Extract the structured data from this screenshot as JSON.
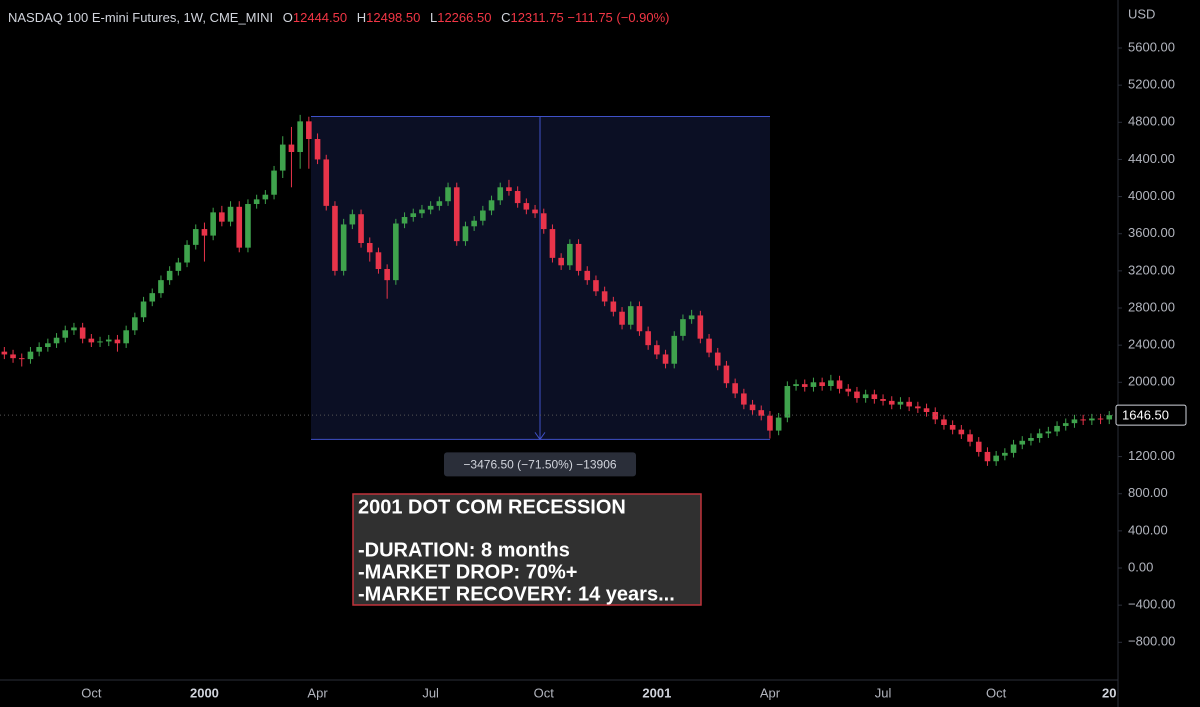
{
  "chart_data": {
    "type": "candlestick",
    "header": {
      "symbol": "NASDAQ 100 E-mini Futures, 1W, CME_MINI",
      "o_label": "O",
      "open": "12444.50",
      "h_label": "H",
      "high": "12498.50",
      "l_label": "L",
      "low": "12266.50",
      "c_label": "C",
      "close": "12311.75",
      "change": "−111.75 (−0.90%)"
    },
    "y_unit": "USD",
    "up_color": "#3fa34d",
    "down_color": "#e8344a",
    "ylim": [
      -1206,
      6117
    ],
    "yticks": [
      {
        "value": 5600,
        "label": "5600.00"
      },
      {
        "value": 5200,
        "label": "5200.00"
      },
      {
        "value": 4800,
        "label": "4800.00"
      },
      {
        "value": 4400,
        "label": "4400.00"
      },
      {
        "value": 4000,
        "label": "4000.00"
      },
      {
        "value": 3600,
        "label": "3600.00"
      },
      {
        "value": 3200,
        "label": "3200.00"
      },
      {
        "value": 2800,
        "label": "2800.00"
      },
      {
        "value": 2400,
        "label": "2400.00"
      },
      {
        "value": 2000,
        "label": "2000.00"
      },
      {
        "value": 1600,
        "label": "1600.00"
      },
      {
        "value": 1200,
        "label": "1200.00"
      },
      {
        "value": 800,
        "label": "800.00"
      },
      {
        "value": 400,
        "label": "400.00"
      },
      {
        "value": 0,
        "label": "0.00"
      },
      {
        "value": -400,
        "label": "−400.00"
      },
      {
        "value": -800,
        "label": "−800.00"
      }
    ],
    "last_price": {
      "value": 1646.5,
      "label": "1646.50"
    },
    "categories": [
      null,
      null,
      null,
      null,
      null,
      null,
      null,
      null,
      null,
      null,
      "Oct",
      null,
      null,
      null,
      null,
      null,
      null,
      null,
      null,
      null,
      null,
      null,
      null,
      "2000",
      null,
      null,
      null,
      null,
      null,
      null,
      null,
      null,
      null,
      null,
      null,
      null,
      "Apr",
      null,
      null,
      null,
      null,
      null,
      null,
      null,
      null,
      null,
      null,
      null,
      null,
      "Jul",
      null,
      null,
      null,
      null,
      null,
      null,
      null,
      null,
      null,
      null,
      null,
      null,
      "Oct",
      null,
      null,
      null,
      null,
      null,
      null,
      null,
      null,
      null,
      null,
      null,
      null,
      "2001",
      null,
      null,
      null,
      null,
      null,
      null,
      null,
      null,
      null,
      null,
      null,
      null,
      "Apr",
      null,
      null,
      null,
      null,
      null,
      null,
      null,
      null,
      null,
      null,
      null,
      null,
      "Jul",
      null,
      null,
      null,
      null,
      null,
      null,
      null,
      null,
      null,
      null,
      null,
      null,
      "Oct",
      null,
      null,
      null,
      null,
      null,
      null,
      null,
      null,
      null,
      null,
      null,
      null,
      "20"
    ],
    "open": [
      2330,
      2300,
      2260,
      2250,
      2330,
      2380,
      2420,
      2480,
      2560,
      2590,
      2470,
      2430,
      2440,
      2460,
      2420,
      2560,
      2700,
      2870,
      2960,
      3100,
      3200,
      3290,
      3480,
      3650,
      3580,
      3830,
      3730,
      3890,
      3450,
      3920,
      3970,
      4020,
      4280,
      4560,
      4480,
      4810,
      4620,
      4400,
      3900,
      3200,
      3700,
      3810,
      3500,
      3400,
      3220,
      3100,
      3710,
      3780,
      3820,
      3860,
      3900,
      3950,
      4100,
      3520,
      3680,
      3740,
      3850,
      3960,
      4100,
      4060,
      3930,
      3860,
      3820,
      3650,
      3340,
      3260,
      3490,
      3200,
      3100,
      2980,
      2870,
      2760,
      2620,
      2820,
      2550,
      2400,
      2300,
      2200,
      2500,
      2680,
      2720,
      2470,
      2320,
      2180,
      1990,
      1880,
      1760,
      1700,
      1640,
      1480,
      1620,
      1960,
      1980,
      1950,
      2000,
      1960,
      2020,
      1930,
      1900,
      1830,
      1870,
      1820,
      1800,
      1760,
      1790,
      1740,
      1720,
      1680,
      1600,
      1540,
      1490,
      1440,
      1360,
      1250,
      1150,
      1210,
      1240,
      1330,
      1370,
      1400,
      1450,
      1470,
      1530,
      1560,
      1600,
      1590,
      1610,
      1600
    ],
    "high": [
      2380,
      2350,
      2310,
      2380,
      2430,
      2470,
      2530,
      2610,
      2640,
      2640,
      2520,
      2490,
      2510,
      2510,
      2610,
      2750,
      2920,
      3010,
      3150,
      3250,
      3340,
      3530,
      3700,
      3720,
      3880,
      3900,
      3950,
      3950,
      3970,
      4020,
      4070,
      4330,
      4650,
      4750,
      4880,
      4860,
      4680,
      4450,
      3950,
      3760,
      3860,
      3860,
      3560,
      3450,
      3270,
      3760,
      3830,
      3870,
      3910,
      3950,
      4000,
      4150,
      4150,
      3730,
      3790,
      3900,
      4010,
      4150,
      4180,
      4110,
      3980,
      3910,
      3870,
      3700,
      3390,
      3540,
      3540,
      3250,
      3150,
      3030,
      2920,
      2810,
      2870,
      2870,
      2600,
      2450,
      2350,
      2550,
      2730,
      2780,
      2770,
      2520,
      2370,
      2230,
      2040,
      1930,
      1810,
      1750,
      1690,
      1670,
      2010,
      2030,
      2030,
      2050,
      2050,
      2080,
      2070,
      1980,
      1950,
      1920,
      1920,
      1870,
      1850,
      1840,
      1840,
      1790,
      1770,
      1730,
      1650,
      1590,
      1540,
      1490,
      1410,
      1300,
      1260,
      1290,
      1380,
      1420,
      1450,
      1500,
      1520,
      1580,
      1610,
      1650,
      1650,
      1660,
      1660,
      1690
    ],
    "low": [
      2250,
      2210,
      2170,
      2200,
      2280,
      2330,
      2370,
      2430,
      2510,
      2420,
      2380,
      2380,
      2390,
      2330,
      2370,
      2510,
      2650,
      2820,
      2910,
      3050,
      3150,
      3240,
      3430,
      3300,
      3530,
      3680,
      3680,
      3400,
      3400,
      3870,
      3920,
      3970,
      4200,
      4100,
      4300,
      4300,
      4350,
      3850,
      3150,
      3150,
      3650,
      3450,
      3300,
      3170,
      2900,
      3050,
      3660,
      3730,
      3770,
      3810,
      3850,
      3900,
      3470,
      3470,
      3630,
      3690,
      3800,
      3910,
      4010,
      3880,
      3810,
      3770,
      3600,
      3290,
      3210,
      3210,
      3150,
      3050,
      2930,
      2820,
      2710,
      2570,
      2570,
      2500,
      2350,
      2250,
      2150,
      2150,
      2450,
      2630,
      2420,
      2270,
      2130,
      1940,
      1830,
      1710,
      1650,
      1590,
      1395,
      1430,
      1570,
      1910,
      1900,
      1900,
      1910,
      1910,
      1880,
      1850,
      1780,
      1780,
      1770,
      1750,
      1710,
      1710,
      1690,
      1670,
      1630,
      1550,
      1490,
      1440,
      1390,
      1310,
      1200,
      1100,
      1100,
      1160,
      1190,
      1280,
      1320,
      1350,
      1400,
      1420,
      1480,
      1510,
      1540,
      1540,
      1550,
      1550
    ],
    "close": [
      2300,
      2260,
      2250,
      2330,
      2380,
      2420,
      2480,
      2560,
      2590,
      2470,
      2430,
      2440,
      2460,
      2420,
      2560,
      2700,
      2870,
      2960,
      3100,
      3200,
      3290,
      3480,
      3650,
      3580,
      3830,
      3730,
      3890,
      3450,
      3920,
      3970,
      4020,
      4280,
      4560,
      4480,
      4810,
      4620,
      4400,
      3900,
      3200,
      3700,
      3810,
      3500,
      3400,
      3220,
      3100,
      3710,
      3780,
      3820,
      3860,
      3900,
      3950,
      4100,
      3520,
      3680,
      3740,
      3850,
      3960,
      4100,
      4060,
      3930,
      3860,
      3820,
      3650,
      3340,
      3260,
      3490,
      3200,
      3100,
      2980,
      2870,
      2760,
      2620,
      2820,
      2550,
      2400,
      2300,
      2200,
      2500,
      2680,
      2720,
      2470,
      2320,
      2180,
      1990,
      1880,
      1760,
      1700,
      1640,
      1480,
      1620,
      1960,
      1980,
      1950,
      2000,
      1960,
      2020,
      1930,
      1900,
      1830,
      1870,
      1820,
      1800,
      1760,
      1790,
      1740,
      1720,
      1680,
      1600,
      1540,
      1490,
      1440,
      1360,
      1250,
      1150,
      1210,
      1240,
      1330,
      1370,
      1400,
      1450,
      1470,
      1530,
      1560,
      1600,
      1590,
      1610,
      1600,
      1646.5
    ],
    "measure": {
      "top": 4862,
      "bottom": 1385.5,
      "label": "−3476.50 (−71.50%) −13906"
    },
    "annotation": {
      "title": "2001 DOT COM RECESSION",
      "lines": [
        "-DURATION: 8 months",
        "-MARKET DROP: 70%+",
        "-MARKET RECOVERY: 14 years..."
      ]
    }
  }
}
